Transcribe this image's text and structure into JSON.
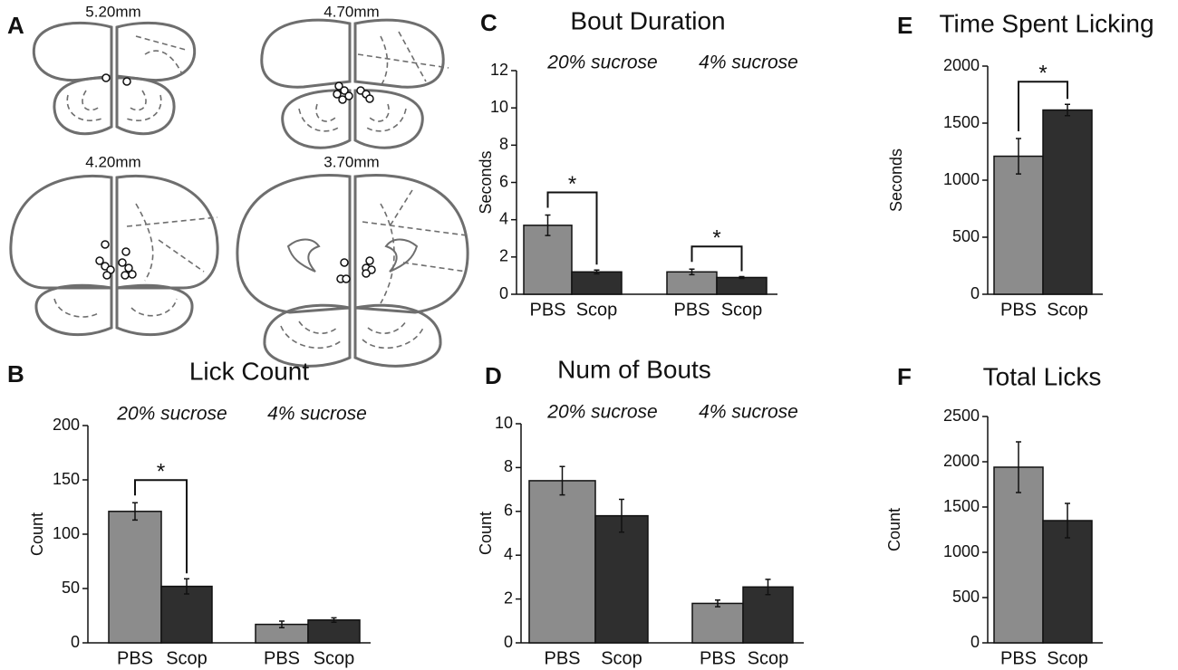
{
  "panel_labels": [
    "A",
    "B",
    "C",
    "D",
    "E",
    "F"
  ],
  "diagram": {
    "sections": [
      "5.20mm",
      "4.70mm",
      "4.20mm",
      "3.70mm"
    ]
  },
  "chart_data": [
    {
      "type": "bar",
      "title": "Lick Count",
      "ylabel": "Count",
      "groups": [
        "20% sucrose",
        "4% sucrose"
      ],
      "categories": [
        "PBS",
        "Scop",
        "PBS",
        "Scop"
      ],
      "values": [
        121,
        52,
        17,
        21
      ],
      "errors": [
        8,
        7,
        3,
        2
      ],
      "colors": [
        "#8c8c8c",
        "#2f2f2f",
        "#8c8c8c",
        "#2f2f2f"
      ],
      "ylim": [
        0,
        200
      ],
      "yticks": [
        0,
        50,
        100,
        150,
        200
      ],
      "significance": [
        {
          "from": 0,
          "to": 1,
          "label": "*"
        }
      ]
    },
    {
      "type": "bar",
      "title": "Bout Duration",
      "ylabel": "Seconds",
      "groups": [
        "20% sucrose",
        "4% sucrose"
      ],
      "categories": [
        "PBS",
        "Scop",
        "PBS",
        "Scop"
      ],
      "values": [
        3.7,
        1.2,
        1.2,
        0.9
      ],
      "errors": [
        0.55,
        0.1,
        0.15,
        0.05
      ],
      "colors": [
        "#8c8c8c",
        "#2f2f2f",
        "#8c8c8c",
        "#2f2f2f"
      ],
      "ylim": [
        0,
        12
      ],
      "yticks": [
        0,
        2,
        4,
        6,
        8,
        10,
        12
      ],
      "significance": [
        {
          "from": 0,
          "to": 1,
          "label": "*"
        },
        {
          "from": 2,
          "to": 3,
          "label": "*"
        }
      ]
    },
    {
      "type": "bar",
      "title": "Num of Bouts",
      "ylabel": "Count",
      "groups": [
        "20% sucrose",
        "4% sucrose"
      ],
      "categories": [
        "PBS",
        "Scop",
        "PBS",
        "Scop"
      ],
      "values": [
        7.4,
        5.8,
        1.8,
        2.55
      ],
      "errors": [
        0.65,
        0.75,
        0.15,
        0.35
      ],
      "colors": [
        "#8c8c8c",
        "#2f2f2f",
        "#8c8c8c",
        "#2f2f2f"
      ],
      "ylim": [
        0,
        10
      ],
      "yticks": [
        0,
        2,
        4,
        6,
        8,
        10
      ]
    },
    {
      "type": "bar",
      "title": "Time Spent Licking",
      "ylabel": "Seconds",
      "categories": [
        "PBS",
        "Scop"
      ],
      "values": [
        1210,
        1615
      ],
      "errors": [
        155,
        50
      ],
      "colors": [
        "#8c8c8c",
        "#2f2f2f"
      ],
      "ylim": [
        0,
        2000
      ],
      "yticks": [
        0,
        500,
        1000,
        1500,
        2000
      ],
      "significance": [
        {
          "from": 0,
          "to": 1,
          "label": "*"
        }
      ]
    },
    {
      "type": "bar",
      "title": "Total Licks",
      "ylabel": "Count",
      "categories": [
        "PBS",
        "Scop"
      ],
      "values": [
        1940,
        1350
      ],
      "errors": [
        280,
        190
      ],
      "colors": [
        "#8c8c8c",
        "#2f2f2f"
      ],
      "ylim": [
        0,
        2500
      ],
      "yticks": [
        0,
        500,
        1000,
        1500,
        2000,
        2500
      ]
    }
  ]
}
